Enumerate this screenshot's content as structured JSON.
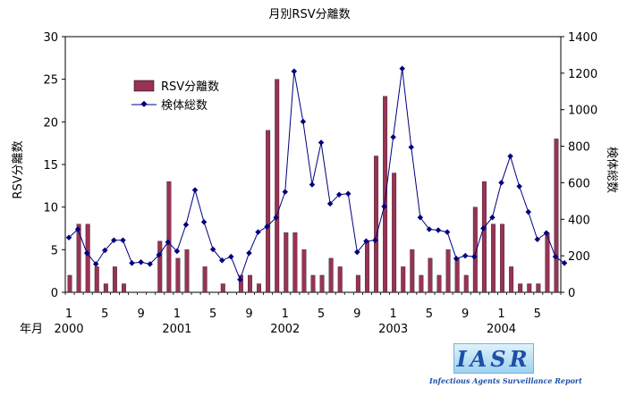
{
  "chart_data": {
    "type": "bar+line",
    "title": "月別RSV分離数",
    "ylabel_left": "RSV分離数",
    "ylabel_right": "検体総数",
    "xlabel": "年月",
    "ylim_left": [
      0,
      30
    ],
    "ylim_right": [
      0,
      1400
    ],
    "yticks_left": [
      "0",
      "5",
      "10",
      "15",
      "20",
      "25",
      "30"
    ],
    "yticks_right": [
      "0",
      "200",
      "400",
      "600",
      "800",
      "1000",
      "1200",
      "1400"
    ],
    "month_ticks": [
      {
        "index": 0,
        "label": "1"
      },
      {
        "index": 4,
        "label": "5"
      },
      {
        "index": 8,
        "label": "9"
      },
      {
        "index": 12,
        "label": "1"
      },
      {
        "index": 16,
        "label": "5"
      },
      {
        "index": 20,
        "label": "9"
      },
      {
        "index": 24,
        "label": "1"
      },
      {
        "index": 28,
        "label": "5"
      },
      {
        "index": 32,
        "label": "9"
      },
      {
        "index": 36,
        "label": "1"
      },
      {
        "index": 40,
        "label": "5"
      },
      {
        "index": 44,
        "label": "9"
      },
      {
        "index": 48,
        "label": "1"
      },
      {
        "index": 52,
        "label": "5"
      }
    ],
    "year_labels": [
      {
        "index": 0,
        "label": "2000"
      },
      {
        "index": 12,
        "label": "2001"
      },
      {
        "index": 24,
        "label": "2002"
      },
      {
        "index": 36,
        "label": "2003"
      },
      {
        "index": 48,
        "label": "2004"
      }
    ],
    "legend_position": "upper-left inside plot",
    "series": [
      {
        "name": "RSV分離数",
        "type": "bar",
        "axis": "left",
        "color": "#993355",
        "values": [
          2,
          8,
          8,
          3,
          1,
          3,
          1,
          0,
          0,
          0,
          6,
          13,
          4,
          5,
          0,
          3,
          0,
          1,
          0,
          2,
          2,
          1,
          19,
          25,
          7,
          7,
          5,
          2,
          2,
          4,
          3,
          0,
          2,
          6,
          16,
          23,
          14,
          3,
          5,
          2,
          4,
          2,
          5,
          4,
          2,
          10,
          13,
          8,
          8,
          3,
          1,
          1,
          1,
          7,
          18
        ]
      },
      {
        "name": "検体総数",
        "type": "line",
        "axis": "right",
        "color": "#000080",
        "values": [
          300,
          345,
          215,
          155,
          230,
          285,
          285,
          160,
          165,
          155,
          205,
          275,
          225,
          370,
          560,
          385,
          235,
          175,
          195,
          70,
          215,
          330,
          360,
          410,
          550,
          1210,
          935,
          590,
          820,
          485,
          535,
          540,
          220,
          280,
          285,
          470,
          850,
          1225,
          795,
          410,
          345,
          340,
          330,
          185,
          200,
          195,
          350,
          410,
          600,
          745,
          580,
          440,
          290,
          325,
          195,
          160
        ]
      }
    ]
  },
  "logo": {
    "text": "IASR",
    "subtitle": "Infectious Agents Surveillance Report",
    "bg_color": "#aadcf2",
    "text_color": "#1e4fa8"
  }
}
